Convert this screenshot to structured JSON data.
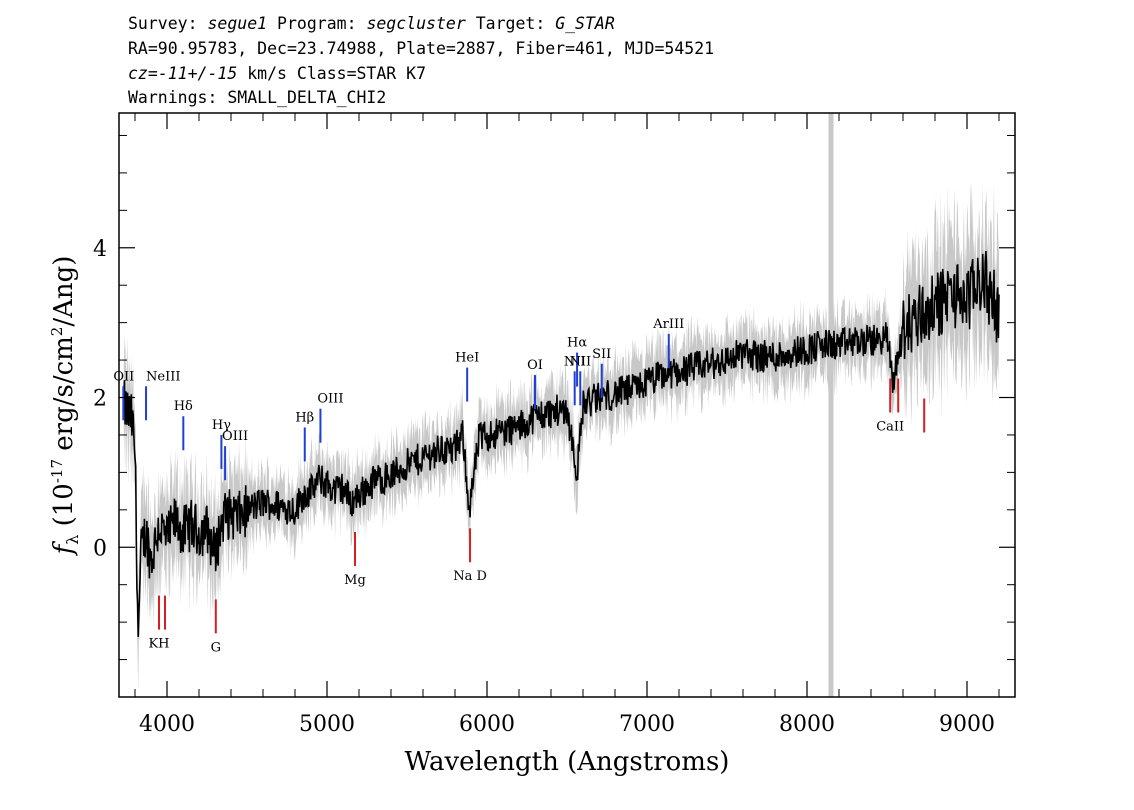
{
  "header": {
    "line1": {
      "survey_label": "Survey: ",
      "survey": "segue1",
      "program_label": " Program: ",
      "program": "segcluster",
      "target_label": " Target: ",
      "target": "G_STAR"
    },
    "line2": "RA=90.95783, Dec=23.74988, Plate=2887, Fiber=461, MJD=54521",
    "line3": {
      "cz_label": "cz=",
      "cz": "-11+/-15",
      "rest": " km/s Class=STAR K7"
    },
    "line4": "Warnings: SMALL_DELTA_CHI2"
  },
  "chart_data": {
    "type": "line",
    "xlabel": "Wavelength (Angstroms)",
    "ylabel_main": "f",
    "ylabel_sub": "λ",
    "ylabel_pre": " (10",
    "ylabel_exp": "-17",
    "ylabel_post": " erg/s/cm",
    "ylabel_exp2": "2",
    "ylabel_end": "/Ang)",
    "xlim": [
      3700,
      9300
    ],
    "ylim": [
      -2.0,
      5.8
    ],
    "x_ticks": [
      4000,
      5000,
      6000,
      7000,
      8000,
      9000
    ],
    "x_tick_labels": [
      "4000",
      "5000",
      "6000",
      "7000",
      "8000",
      "9000"
    ],
    "y_ticks": [
      0,
      2,
      4
    ],
    "y_tick_labels": [
      "0",
      "2",
      "4"
    ],
    "masked_column_x": 8150,
    "colors": {
      "flux": "#000000",
      "error_band": "#c8c8c8",
      "emission": "#1f3fd6",
      "absorption": "#d61f1f"
    },
    "series": [
      {
        "name": "",
        "x": [
          3730,
          3780,
          3800,
          3820,
          3840,
          3870,
          3900,
          3950,
          4000,
          4050,
          4100,
          4150,
          4200,
          4250,
          4300,
          4350,
          4400,
          4450,
          4500,
          4600,
          4700,
          4800,
          4850,
          4900,
          4950,
          5000,
          5050,
          5100,
          5150,
          5200,
          5300,
          5400,
          5500,
          5600,
          5700,
          5800,
          5850,
          5890,
          5950,
          6000,
          6100,
          6200,
          6300,
          6400,
          6500,
          6563,
          6600,
          6700,
          6800,
          6900,
          7000,
          7100,
          7200,
          7300,
          7400,
          7500,
          7600,
          7700,
          7800,
          7900,
          8000,
          8100,
          8200,
          8300,
          8400,
          8500,
          8540,
          8600,
          8700,
          8800,
          8900,
          9000,
          9100,
          9200
        ],
        "y": [
          1.9,
          1.7,
          1.3,
          -1.2,
          0.0,
          0.2,
          -0.2,
          0.3,
          0.1,
          0.35,
          0.2,
          0.3,
          0.2,
          0.25,
          -0.1,
          0.4,
          0.45,
          0.4,
          0.5,
          0.6,
          0.55,
          0.5,
          0.7,
          0.75,
          0.9,
          0.85,
          0.75,
          0.8,
          0.6,
          0.7,
          0.9,
          0.95,
          1.1,
          1.2,
          1.3,
          1.3,
          1.5,
          0.5,
          1.45,
          1.5,
          1.55,
          1.6,
          1.75,
          1.8,
          1.85,
          1.0,
          1.9,
          2.0,
          2.05,
          2.1,
          2.2,
          2.3,
          2.35,
          2.4,
          2.45,
          2.5,
          2.6,
          2.55,
          2.55,
          2.6,
          2.65,
          2.7,
          2.7,
          2.75,
          2.75,
          2.8,
          2.2,
          2.9,
          3.1,
          3.2,
          3.4,
          3.3,
          3.6,
          3.1
        ]
      }
    ],
    "line_markers": [
      {
        "label": "OII",
        "x": 3727,
        "type": "emission"
      },
      {
        "label": "NeIII",
        "x": 3869,
        "type": "emission"
      },
      {
        "label": "Hδ",
        "x": 4102,
        "type": "emission"
      },
      {
        "label": "Hγ",
        "x": 4340,
        "type": "emission"
      },
      {
        "label": "OIII",
        "x": 4363,
        "type": "emission"
      },
      {
        "label": "Hβ",
        "x": 4861,
        "type": "emission"
      },
      {
        "label": "OIII",
        "x": 4959,
        "type": "emission"
      },
      {
        "label": "HeI",
        "x": 5876,
        "type": "emission"
      },
      {
        "label": "OI",
        "x": 6300,
        "type": "emission"
      },
      {
        "label": "NII",
        "x": 6548,
        "type": "emission"
      },
      {
        "label": "Hα",
        "x": 6563,
        "type": "emission"
      },
      {
        "label": "NII",
        "x": 6583,
        "type": "emission"
      },
      {
        "label": "SII",
        "x": 6717,
        "type": "emission"
      },
      {
        "label": "ArIII",
        "x": 7136,
        "type": "emission"
      },
      {
        "label": "KH",
        "x": 3950,
        "type": "absorption"
      },
      {
        "label": "G",
        "x": 4305,
        "type": "absorption"
      },
      {
        "label": "Mg",
        "x": 5175,
        "type": "absorption"
      },
      {
        "label": "Na D",
        "x": 5894,
        "type": "absorption"
      },
      {
        "label": "CaII",
        "x": 8520,
        "type": "absorption"
      }
    ]
  }
}
